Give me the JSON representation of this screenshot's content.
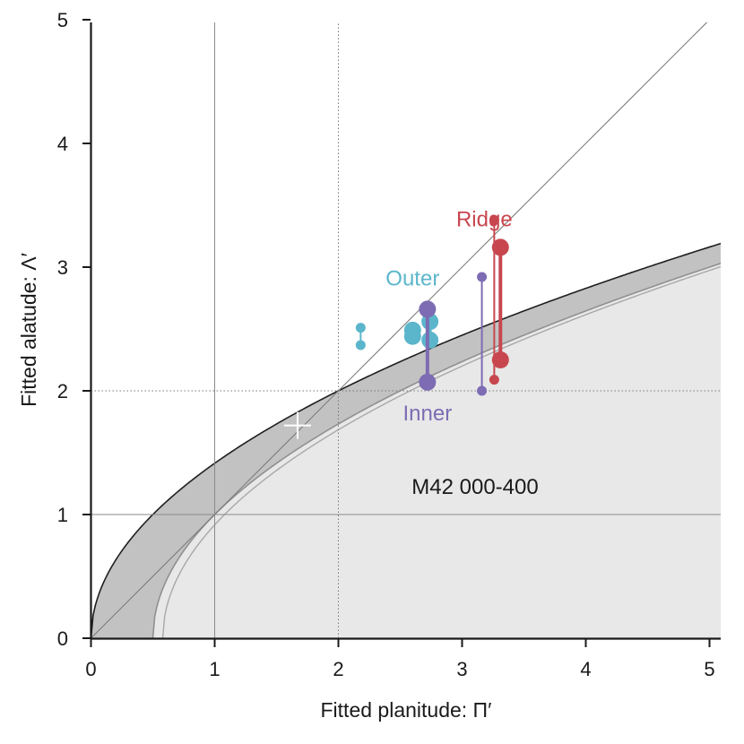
{
  "chart_data": {
    "type": "scatter",
    "title": "",
    "xlabel": "Fitted planitude: Π′",
    "ylabel": "Fitted alatude: Λ′",
    "xlim": [
      0,
      5.1
    ],
    "ylim": [
      0,
      5.1
    ],
    "xticks": [
      "0",
      "1",
      "2",
      "3",
      "4",
      "5"
    ],
    "yticks": [
      "0",
      "1",
      "2",
      "3",
      "4",
      "5"
    ],
    "annotation": "M42 000-400",
    "colors": {
      "outer": "#5bb6cb",
      "inner": "#7d6cb3",
      "ridge": "#c8474f",
      "band": "#c2c2c2",
      "region": "#e8e8e8"
    },
    "marker": {
      "x": 1.67,
      "y": 1.72,
      "color": "#ffffff"
    },
    "series": [
      {
        "name": "Outer",
        "label_pos": [
          2.6,
          2.85
        ],
        "segments": [
          {
            "x": 2.18,
            "y1": 2.37,
            "y2": 2.51,
            "size": "small"
          },
          {
            "x": 2.6,
            "y1": 2.44,
            "y2": 2.49,
            "size": "large"
          },
          {
            "x": 2.74,
            "y1": 2.41,
            "y2": 2.56,
            "size": "large"
          }
        ]
      },
      {
        "name": "Inner",
        "label_pos": [
          2.72,
          1.76
        ],
        "segments": [
          {
            "x": 3.16,
            "y1": 2.0,
            "y2": 2.92,
            "size": "small"
          },
          {
            "x": 2.72,
            "y1": 2.07,
            "y2": 2.66,
            "size": "large"
          }
        ]
      },
      {
        "name": "Ridge",
        "label_pos": [
          3.18,
          3.33
        ],
        "segments": [
          {
            "x": 3.26,
            "y1": 2.09,
            "y2": 3.38,
            "size": "small"
          },
          {
            "x": 3.31,
            "y1": 2.25,
            "y2": 3.16,
            "size": "large"
          }
        ]
      }
    ]
  }
}
